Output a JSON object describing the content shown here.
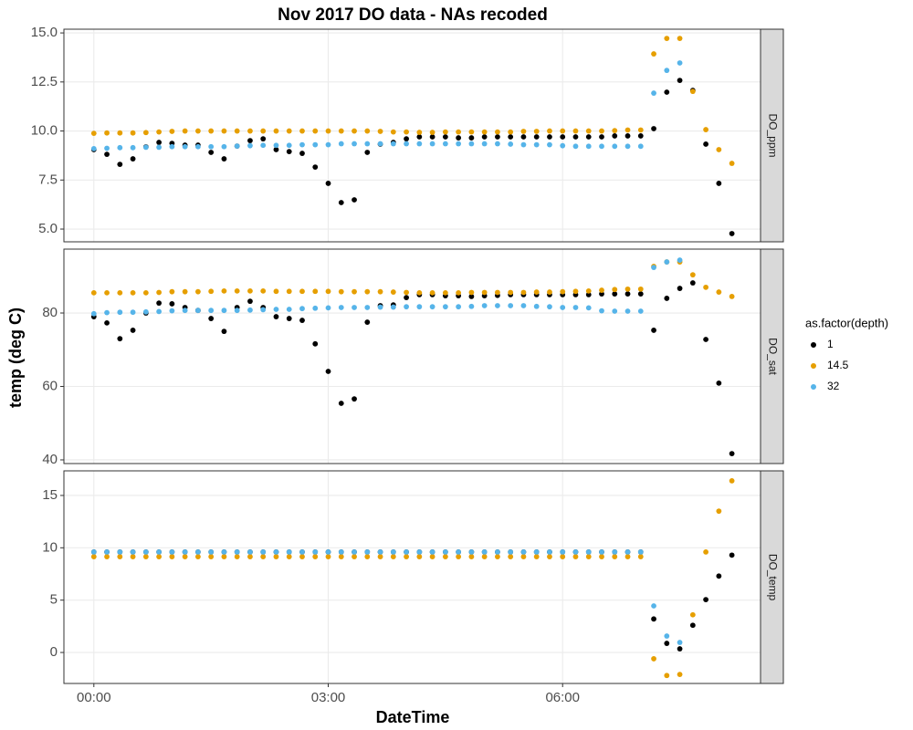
{
  "title": "Nov 2017 DO data - NAs recoded",
  "x_label": "DateTime",
  "y_label": "temp (deg C)",
  "legend_title": "as.factor(depth)",
  "chart_data": [
    {
      "type": "scatter",
      "facet": "DO_ppm",
      "x": [
        0,
        10,
        20,
        30,
        40,
        50,
        60,
        70,
        80,
        90,
        100,
        110,
        120,
        130,
        140,
        150,
        160,
        170,
        180,
        190,
        200,
        210,
        220,
        230,
        240,
        250,
        260,
        270,
        280,
        290,
        300,
        310,
        320,
        330,
        340,
        350,
        360,
        370,
        380,
        390,
        400,
        410,
        420,
        430,
        440,
        450,
        460,
        470,
        480,
        490
      ],
      "xlim": [
        -23,
        512
      ],
      "ylim": [
        4.35,
        15.19
      ],
      "yticks": [
        {
          "value": 5,
          "label": "5.0"
        },
        {
          "value": 7.5,
          "label": "7.5"
        },
        {
          "value": 10,
          "label": "10.0"
        },
        {
          "value": 12.5,
          "label": "12.5"
        },
        {
          "value": 15,
          "label": "15.0"
        }
      ],
      "series": [
        {
          "name": "1",
          "color": "#000000",
          "values": [
            9.05,
            8.81,
            8.3,
            8.58,
            9.19,
            9.42,
            9.37,
            9.28,
            9.28,
            8.91,
            8.58,
            9.23,
            9.51,
            9.6,
            9.05,
            8.95,
            8.86,
            8.16,
            7.33,
            6.35,
            6.49,
            8.91,
            9.33,
            9.42,
            9.6,
            9.7,
            9.7,
            9.7,
            9.65,
            9.65,
            9.7,
            9.7,
            9.7,
            9.7,
            9.7,
            9.7,
            9.7,
            9.7,
            9.7,
            9.7,
            9.75,
            9.75,
            9.75,
            10.12,
            11.98,
            12.58,
            12.07,
            9.33,
            7.33,
            4.77
          ]
        },
        {
          "name": "14.5",
          "color": "#E69F00",
          "values": [
            9.88,
            9.9,
            9.9,
            9.9,
            9.92,
            9.95,
            9.98,
            10,
            10,
            10,
            10,
            10,
            10,
            10,
            10,
            10,
            10,
            10,
            10,
            10,
            10,
            10,
            9.98,
            9.95,
            9.95,
            9.93,
            9.93,
            9.95,
            9.95,
            9.95,
            9.95,
            9.95,
            9.95,
            9.98,
            9.98,
            10,
            10,
            10,
            10,
            10,
            10.02,
            10.05,
            10.05,
            13.93,
            14.72,
            14.72,
            12.02,
            10.07,
            9.05,
            8.35
          ]
        },
        {
          "name": "32",
          "color": "#56B4E9",
          "values": [
            9.1,
            9.12,
            9.15,
            9.15,
            9.17,
            9.17,
            9.2,
            9.2,
            9.2,
            9.2,
            9.2,
            9.23,
            9.25,
            9.27,
            9.27,
            9.27,
            9.3,
            9.3,
            9.3,
            9.35,
            9.35,
            9.35,
            9.35,
            9.35,
            9.35,
            9.35,
            9.35,
            9.35,
            9.35,
            9.35,
            9.35,
            9.35,
            9.33,
            9.3,
            9.3,
            9.3,
            9.25,
            9.22,
            9.22,
            9.22,
            9.22,
            9.22,
            9.22,
            11.93,
            13.09,
            13.47,
            null,
            null,
            null,
            null
          ]
        }
      ]
    },
    {
      "type": "scatter",
      "facet": "DO_sat",
      "x": [
        0,
        10,
        20,
        30,
        40,
        50,
        60,
        70,
        80,
        90,
        100,
        110,
        120,
        130,
        140,
        150,
        160,
        170,
        180,
        190,
        200,
        210,
        220,
        230,
        240,
        250,
        260,
        270,
        280,
        290,
        300,
        310,
        320,
        330,
        340,
        350,
        360,
        370,
        380,
        390,
        400,
        410,
        420,
        430,
        440,
        450,
        460,
        470,
        480,
        490
      ],
      "xlim": [
        -23,
        512
      ],
      "ylim": [
        39.0,
        97.4
      ],
      "yticks": [
        40,
        60,
        80
      ],
      "series": [
        {
          "color": "#000000",
          "values": [
            79,
            77.3,
            73,
            75.3,
            80,
            82.7,
            82.5,
            81.5,
            80.7,
            78.5,
            75,
            81.5,
            83.2,
            81.5,
            79,
            78.5,
            78,
            71.6,
            64.1,
            55.4,
            56.6,
            77.5,
            82,
            82.2,
            84.2,
            85,
            85,
            84.7,
            84.7,
            84.5,
            84.7,
            84.8,
            85,
            85,
            85,
            85,
            85,
            85,
            85,
            85.2,
            85.2,
            85.2,
            85.2,
            75.3,
            84,
            86.7,
            88.2,
            72.8,
            60.9,
            41.7
          ]
        },
        {
          "color": "#E69F00",
          "values": [
            85.5,
            85.5,
            85.5,
            85.5,
            85.5,
            85.6,
            85.8,
            85.8,
            85.8,
            85.9,
            86,
            86,
            86,
            86,
            85.9,
            85.9,
            85.9,
            85.9,
            85.9,
            85.8,
            85.8,
            85.8,
            85.8,
            85.7,
            85.6,
            85.5,
            85.5,
            85.5,
            85.5,
            85.6,
            85.6,
            85.6,
            85.6,
            85.6,
            85.7,
            85.7,
            85.8,
            85.9,
            86,
            86.2,
            86.4,
            86.5,
            86.5,
            92.7,
            93.9,
            93.9,
            90.4,
            87,
            85.7,
            84.5
          ]
        },
        {
          "color": "#56B4E9",
          "values": [
            79.8,
            80.1,
            80.2,
            80.2,
            80.3,
            80.4,
            80.6,
            80.7,
            80.7,
            80.7,
            80.7,
            80.7,
            80.8,
            80.9,
            81,
            81,
            81.2,
            81.3,
            81.4,
            81.5,
            81.5,
            81.5,
            81.6,
            81.6,
            81.7,
            81.7,
            81.7,
            81.7,
            81.7,
            81.8,
            82,
            82,
            82,
            82,
            81.8,
            81.7,
            81.5,
            81.5,
            81.4,
            80.6,
            80.5,
            80.5,
            80.5,
            92.4,
            93.9,
            94.4,
            null,
            null,
            null,
            null
          ]
        }
      ]
    },
    {
      "type": "scatter",
      "facet": "DO_temp",
      "x": [
        0,
        10,
        20,
        30,
        40,
        50,
        60,
        70,
        80,
        90,
        100,
        110,
        120,
        130,
        140,
        150,
        160,
        170,
        180,
        190,
        200,
        210,
        220,
        230,
        240,
        250,
        260,
        270,
        280,
        290,
        300,
        310,
        320,
        330,
        340,
        350,
        360,
        370,
        380,
        390,
        400,
        410,
        420,
        430,
        440,
        450,
        460,
        470,
        480,
        490
      ],
      "xlim": [
        -23,
        512
      ],
      "xticks": [
        {
          "value": 0,
          "label": "00:00"
        },
        {
          "value": 180,
          "label": "03:00"
        },
        {
          "value": 360,
          "label": "06:00"
        }
      ],
      "ylim": [
        -2.96,
        17.35
      ],
      "yticks": [
        0,
        5,
        10,
        15
      ],
      "series": [
        {
          "color": "#000000",
          "values": [
            9.6,
            9.6,
            9.6,
            9.6,
            9.6,
            9.6,
            9.6,
            9.6,
            9.6,
            9.6,
            9.6,
            9.6,
            9.6,
            9.6,
            9.6,
            9.6,
            9.6,
            9.6,
            9.6,
            9.6,
            9.6,
            9.6,
            9.6,
            9.6,
            9.6,
            9.6,
            9.6,
            9.6,
            9.6,
            9.6,
            9.6,
            9.6,
            9.6,
            9.6,
            9.6,
            9.6,
            9.6,
            9.6,
            9.6,
            9.6,
            9.6,
            9.6,
            9.6,
            3.2,
            0.87,
            0.35,
            2.6,
            5.05,
            7.3,
            9.3
          ]
        },
        {
          "color": "#E69F00",
          "values": [
            9.15,
            9.15,
            9.15,
            9.15,
            9.15,
            9.15,
            9.15,
            9.15,
            9.15,
            9.15,
            9.15,
            9.15,
            9.15,
            9.15,
            9.15,
            9.15,
            9.15,
            9.15,
            9.15,
            9.15,
            9.15,
            9.15,
            9.15,
            9.15,
            9.15,
            9.15,
            9.15,
            9.15,
            9.15,
            9.15,
            9.15,
            9.15,
            9.15,
            9.15,
            9.15,
            9.15,
            9.15,
            9.15,
            9.15,
            9.15,
            9.15,
            9.15,
            9.15,
            -0.6,
            -2.2,
            -2.1,
            3.6,
            9.6,
            13.5,
            16.4
          ]
        },
        {
          "color": "#56B4E9",
          "values": [
            9.6,
            9.6,
            9.6,
            9.6,
            9.6,
            9.6,
            9.6,
            9.6,
            9.6,
            9.6,
            9.6,
            9.6,
            9.6,
            9.6,
            9.6,
            9.6,
            9.6,
            9.6,
            9.6,
            9.6,
            9.6,
            9.6,
            9.6,
            9.6,
            9.6,
            9.6,
            9.6,
            9.6,
            9.6,
            9.6,
            9.6,
            9.6,
            9.6,
            9.6,
            9.6,
            9.6,
            9.6,
            9.6,
            9.6,
            9.6,
            9.6,
            9.6,
            9.6,
            4.45,
            1.57,
            0.96,
            null,
            null,
            null,
            null
          ]
        }
      ]
    }
  ]
}
